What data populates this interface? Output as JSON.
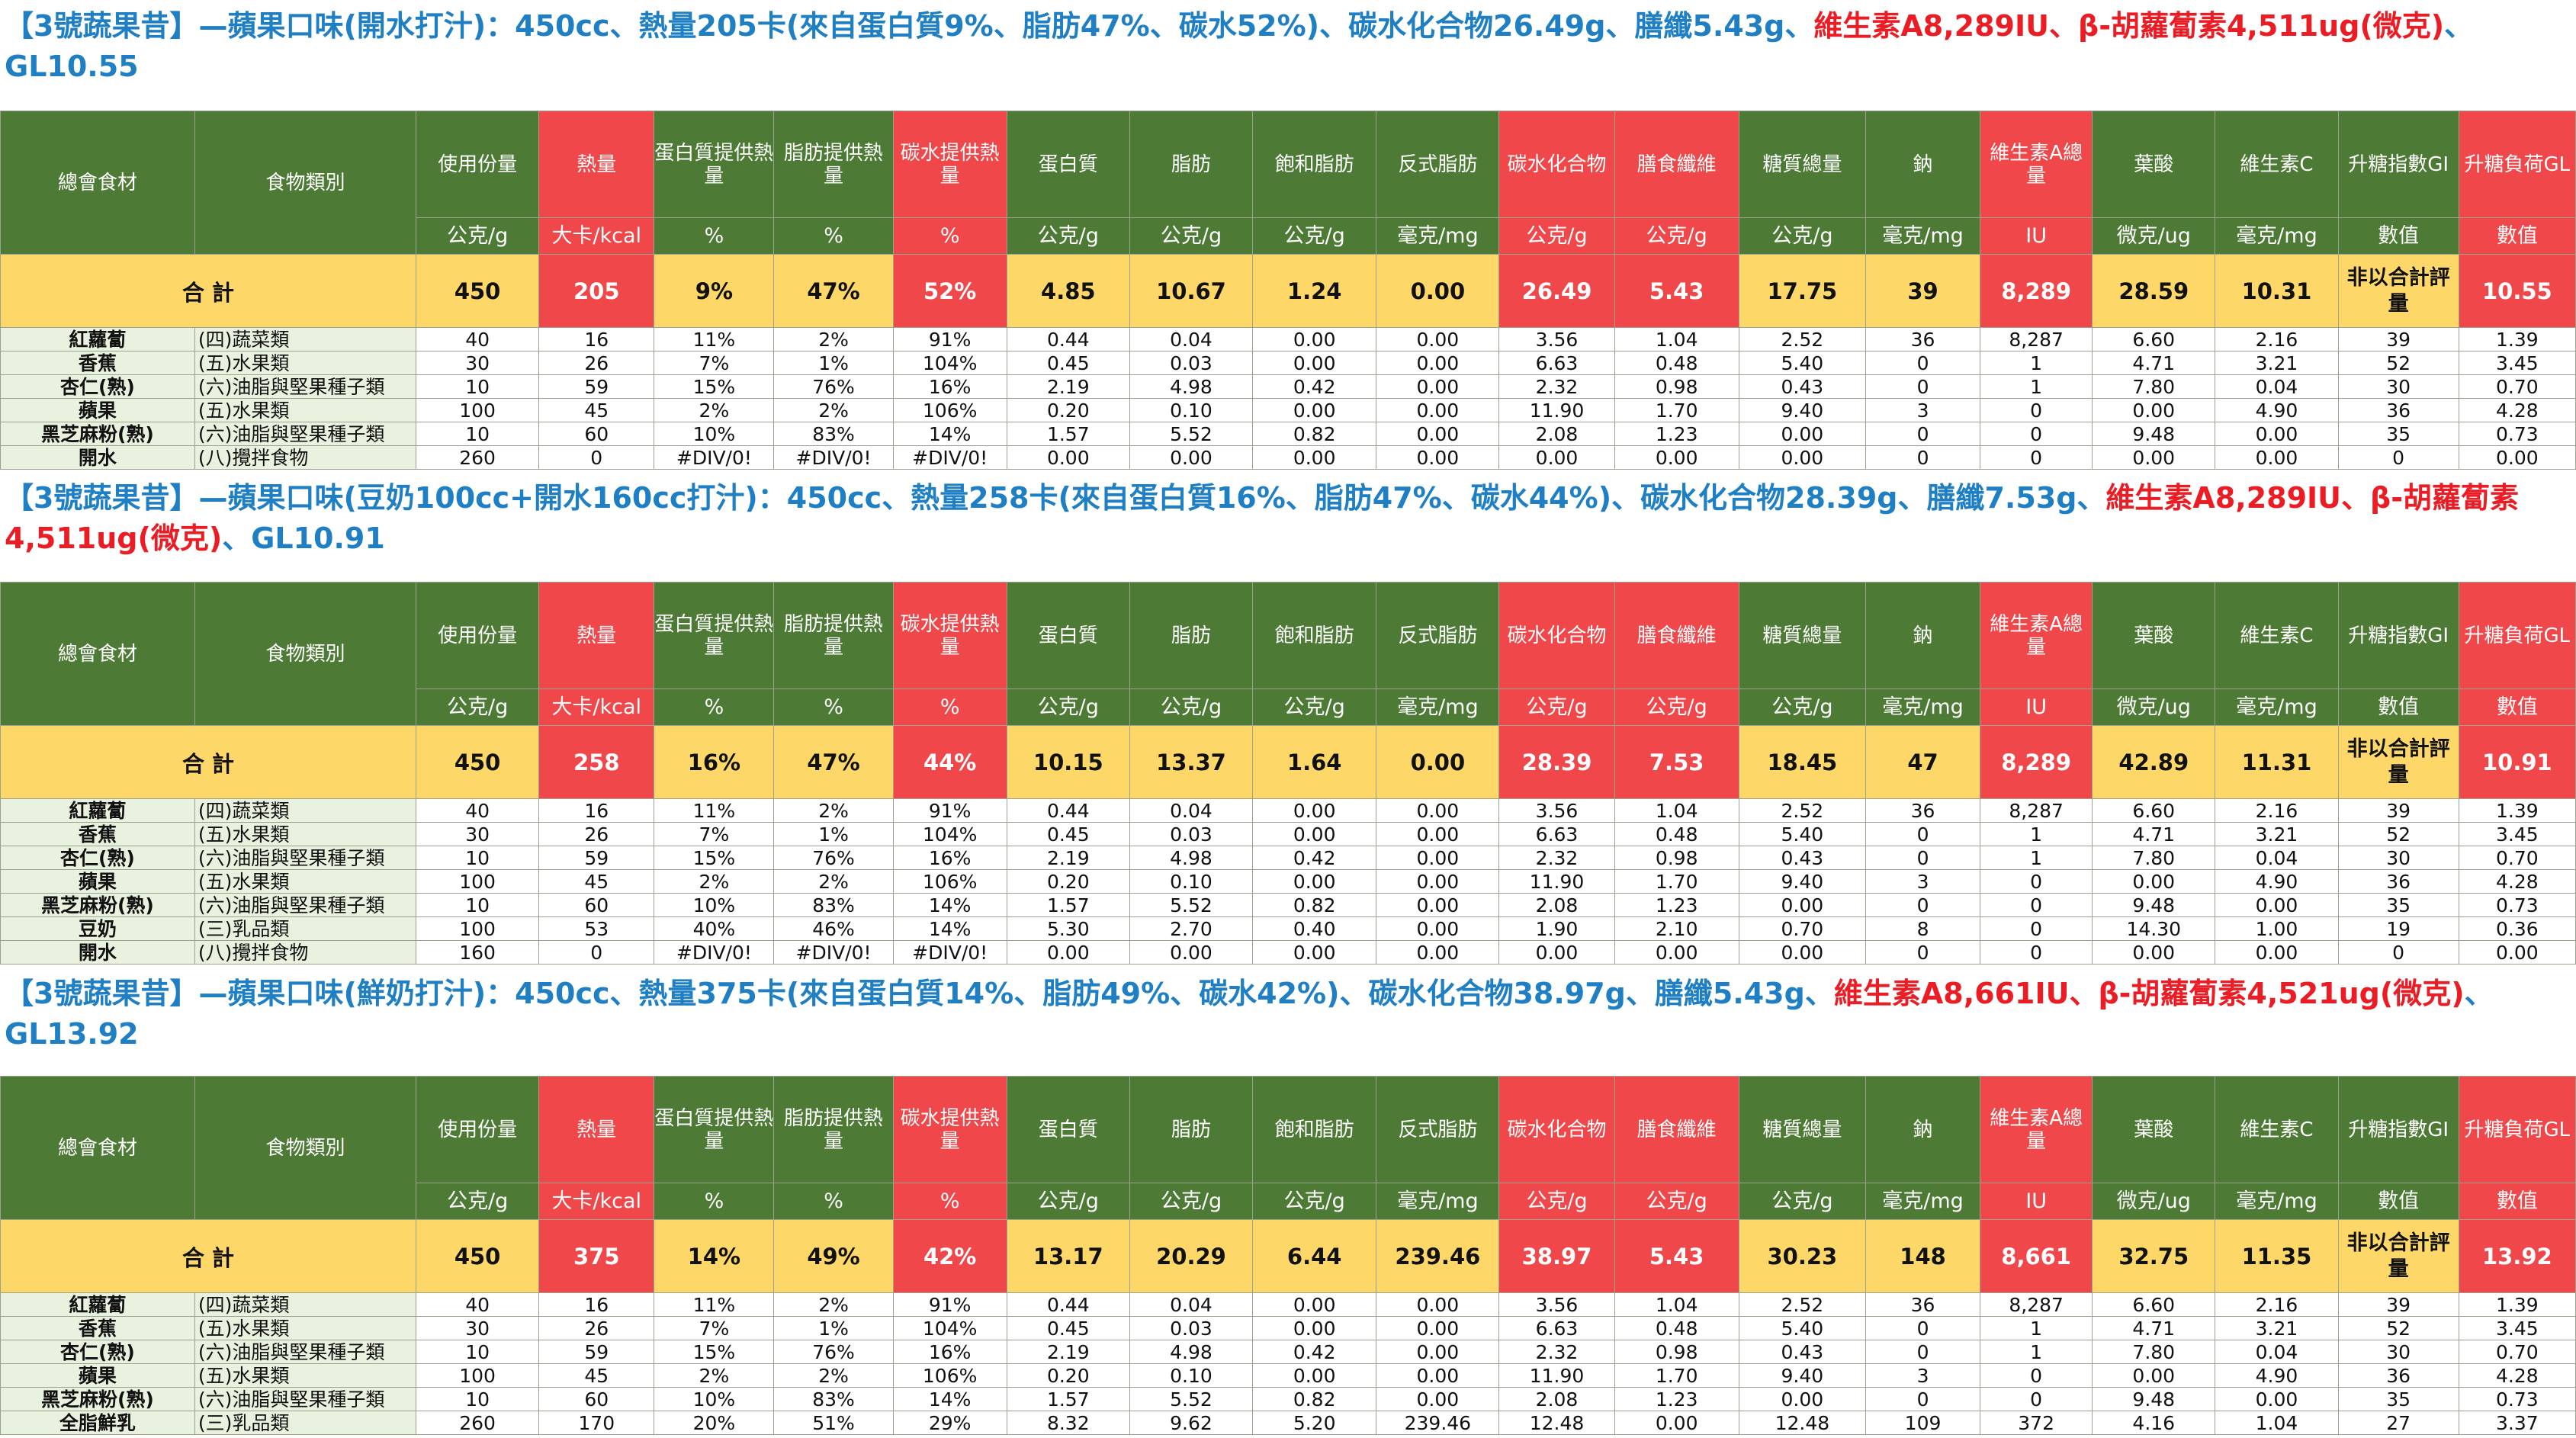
{
  "columns": [
    {
      "name": "總會食材",
      "unit": "",
      "red": false
    },
    {
      "name": "食物類別",
      "unit": "",
      "red": false
    },
    {
      "name": "使用份量",
      "unit": "公克/g",
      "red": false
    },
    {
      "name": "熱量",
      "unit": "大卡/kcal",
      "red": true
    },
    {
      "name": "蛋白質提供熱量",
      "unit": "%",
      "red": false
    },
    {
      "name": "脂肪提供熱量",
      "unit": "%",
      "red": false
    },
    {
      "name": "碳水提供熱量",
      "unit": "%",
      "red": true
    },
    {
      "name": "蛋白質",
      "unit": "公克/g",
      "red": false
    },
    {
      "name": "脂肪",
      "unit": "公克/g",
      "red": false
    },
    {
      "name": "飽和脂肪",
      "unit": "公克/g",
      "red": false
    },
    {
      "name": "反式脂肪",
      "unit": "毫克/mg",
      "red": false
    },
    {
      "name": "碳水化合物",
      "unit": "公克/g",
      "red": true
    },
    {
      "name": "膳食纖維",
      "unit": "公克/g",
      "red": true
    },
    {
      "name": "糖質總量",
      "unit": "公克/g",
      "red": false
    },
    {
      "name": "鈉",
      "unit": "毫克/mg",
      "red": false
    },
    {
      "name": "維生素A總量",
      "unit": "IU",
      "red": true
    },
    {
      "name": "葉酸",
      "unit": "微克/ug",
      "red": false
    },
    {
      "name": "維生素C",
      "unit": "毫克/mg",
      "red": false
    },
    {
      "name": "升糖指數GI",
      "unit": "數值",
      "red": false
    },
    {
      "name": "升糖負荷GL",
      "unit": "數值",
      "red": true
    }
  ],
  "total_label": "合 計",
  "gi_note": "非以合計評量",
  "sections": [
    {
      "title_blue": "【3號蔬果昔】—蘋果口味(開水打汁)：450cc、熱量205卡(來自蛋白質9%、脂肪47%、碳水52%)、碳水化合物26.49g、膳纖5.43g、",
      "title_red": "維生素A8,289IU、β-胡蘿蔔素4,511ug(微克)",
      "title_tail": "、GL10.55",
      "total": [
        "450",
        "205",
        "9%",
        "47%",
        "52%",
        "4.85",
        "10.67",
        "1.24",
        "0.00",
        "26.49",
        "5.43",
        "17.75",
        "39",
        "8,289",
        "28.59",
        "10.31",
        "",
        "10.55"
      ],
      "rows": [
        [
          "紅蘿蔔",
          "(四)蔬菜類",
          "40",
          "16",
          "11%",
          "2%",
          "91%",
          "0.44",
          "0.04",
          "0.00",
          "0.00",
          "3.56",
          "1.04",
          "2.52",
          "36",
          "8,287",
          "6.60",
          "2.16",
          "39",
          "1.39"
        ],
        [
          "香蕉",
          "(五)水果類",
          "30",
          "26",
          "7%",
          "1%",
          "104%",
          "0.45",
          "0.03",
          "0.00",
          "0.00",
          "6.63",
          "0.48",
          "5.40",
          "0",
          "1",
          "4.71",
          "3.21",
          "52",
          "3.45"
        ],
        [
          "杏仁(熟)",
          "(六)油脂與堅果種子類",
          "10",
          "59",
          "15%",
          "76%",
          "16%",
          "2.19",
          "4.98",
          "0.42",
          "0.00",
          "2.32",
          "0.98",
          "0.43",
          "0",
          "1",
          "7.80",
          "0.04",
          "30",
          "0.70"
        ],
        [
          "蘋果",
          "(五)水果類",
          "100",
          "45",
          "2%",
          "2%",
          "106%",
          "0.20",
          "0.10",
          "0.00",
          "0.00",
          "11.90",
          "1.70",
          "9.40",
          "3",
          "0",
          "0.00",
          "4.90",
          "36",
          "4.28"
        ],
        [
          "黑芝麻粉(熟)",
          "(六)油脂與堅果種子類",
          "10",
          "60",
          "10%",
          "83%",
          "14%",
          "1.57",
          "5.52",
          "0.82",
          "0.00",
          "2.08",
          "1.23",
          "0.00",
          "0",
          "0",
          "9.48",
          "0.00",
          "35",
          "0.73"
        ],
        [
          "開水",
          "(八)攪拌食物",
          "260",
          "0",
          "#DIV/0!",
          "#DIV/0!",
          "#DIV/0!",
          "0.00",
          "0.00",
          "0.00",
          "0.00",
          "0.00",
          "0.00",
          "0.00",
          "0",
          "0",
          "0.00",
          "0.00",
          "0",
          "0.00"
        ]
      ]
    },
    {
      "title_blue": "【3號蔬果昔】—蘋果口味(豆奶100cc+開水160cc打汁)：450cc、熱量258卡(來自蛋白質16%、脂肪47%、碳水44%)、碳水化合物28.39g、膳纖7.53g、",
      "title_red": "維生素A8,289IU、β-胡蘿蔔素4,511ug(微克)",
      "title_tail": "、GL10.91",
      "total": [
        "450",
        "258",
        "16%",
        "47%",
        "44%",
        "10.15",
        "13.37",
        "1.64",
        "0.00",
        "28.39",
        "7.53",
        "18.45",
        "47",
        "8,289",
        "42.89",
        "11.31",
        "",
        "10.91"
      ],
      "rows": [
        [
          "紅蘿蔔",
          "(四)蔬菜類",
          "40",
          "16",
          "11%",
          "2%",
          "91%",
          "0.44",
          "0.04",
          "0.00",
          "0.00",
          "3.56",
          "1.04",
          "2.52",
          "36",
          "8,287",
          "6.60",
          "2.16",
          "39",
          "1.39"
        ],
        [
          "香蕉",
          "(五)水果類",
          "30",
          "26",
          "7%",
          "1%",
          "104%",
          "0.45",
          "0.03",
          "0.00",
          "0.00",
          "6.63",
          "0.48",
          "5.40",
          "0",
          "1",
          "4.71",
          "3.21",
          "52",
          "3.45"
        ],
        [
          "杏仁(熟)",
          "(六)油脂與堅果種子類",
          "10",
          "59",
          "15%",
          "76%",
          "16%",
          "2.19",
          "4.98",
          "0.42",
          "0.00",
          "2.32",
          "0.98",
          "0.43",
          "0",
          "1",
          "7.80",
          "0.04",
          "30",
          "0.70"
        ],
        [
          "蘋果",
          "(五)水果類",
          "100",
          "45",
          "2%",
          "2%",
          "106%",
          "0.20",
          "0.10",
          "0.00",
          "0.00",
          "11.90",
          "1.70",
          "9.40",
          "3",
          "0",
          "0.00",
          "4.90",
          "36",
          "4.28"
        ],
        [
          "黑芝麻粉(熟)",
          "(六)油脂與堅果種子類",
          "10",
          "60",
          "10%",
          "83%",
          "14%",
          "1.57",
          "5.52",
          "0.82",
          "0.00",
          "2.08",
          "1.23",
          "0.00",
          "0",
          "0",
          "9.48",
          "0.00",
          "35",
          "0.73"
        ],
        [
          "豆奶",
          "(三)乳品類",
          "100",
          "53",
          "40%",
          "46%",
          "14%",
          "5.30",
          "2.70",
          "0.40",
          "0.00",
          "1.90",
          "2.10",
          "0.70",
          "8",
          "0",
          "14.30",
          "1.00",
          "19",
          "0.36"
        ],
        [
          "開水",
          "(八)攪拌食物",
          "160",
          "0",
          "#DIV/0!",
          "#DIV/0!",
          "#DIV/0!",
          "0.00",
          "0.00",
          "0.00",
          "0.00",
          "0.00",
          "0.00",
          "0.00",
          "0",
          "0",
          "0.00",
          "0.00",
          "0",
          "0.00"
        ]
      ]
    },
    {
      "title_blue": "【3號蔬果昔】—蘋果口味(鮮奶打汁)：450cc、熱量375卡(來自蛋白質14%、脂肪49%、碳水42%)、碳水化合物38.97g、膳纖5.43g、",
      "title_red": "維生素A8,661IU、β-胡蘿蔔素4,521ug(微克)",
      "title_tail": "、GL13.92",
      "total": [
        "450",
        "375",
        "14%",
        "49%",
        "42%",
        "13.17",
        "20.29",
        "6.44",
        "239.46",
        "38.97",
        "5.43",
        "30.23",
        "148",
        "8,661",
        "32.75",
        "11.35",
        "",
        "13.92"
      ],
      "rows": [
        [
          "紅蘿蔔",
          "(四)蔬菜類",
          "40",
          "16",
          "11%",
          "2%",
          "91%",
          "0.44",
          "0.04",
          "0.00",
          "0.00",
          "3.56",
          "1.04",
          "2.52",
          "36",
          "8,287",
          "6.60",
          "2.16",
          "39",
          "1.39"
        ],
        [
          "香蕉",
          "(五)水果類",
          "30",
          "26",
          "7%",
          "1%",
          "104%",
          "0.45",
          "0.03",
          "0.00",
          "0.00",
          "6.63",
          "0.48",
          "5.40",
          "0",
          "1",
          "4.71",
          "3.21",
          "52",
          "3.45"
        ],
        [
          "杏仁(熟)",
          "(六)油脂與堅果種子類",
          "10",
          "59",
          "15%",
          "76%",
          "16%",
          "2.19",
          "4.98",
          "0.42",
          "0.00",
          "2.32",
          "0.98",
          "0.43",
          "0",
          "1",
          "7.80",
          "0.04",
          "30",
          "0.70"
        ],
        [
          "蘋果",
          "(五)水果類",
          "100",
          "45",
          "2%",
          "2%",
          "106%",
          "0.20",
          "0.10",
          "0.00",
          "0.00",
          "11.90",
          "1.70",
          "9.40",
          "3",
          "0",
          "0.00",
          "4.90",
          "36",
          "4.28"
        ],
        [
          "黑芝麻粉(熟)",
          "(六)油脂與堅果種子類",
          "10",
          "60",
          "10%",
          "83%",
          "14%",
          "1.57",
          "5.52",
          "0.82",
          "0.00",
          "2.08",
          "1.23",
          "0.00",
          "0",
          "0",
          "9.48",
          "0.00",
          "35",
          "0.73"
        ],
        [
          "全脂鮮乳",
          "(三)乳品類",
          "260",
          "170",
          "20%",
          "51%",
          "29%",
          "8.32",
          "9.62",
          "5.20",
          "239.46",
          "12.48",
          "0.00",
          "12.48",
          "109",
          "372",
          "4.16",
          "1.04",
          "27",
          "3.37"
        ]
      ]
    }
  ]
}
